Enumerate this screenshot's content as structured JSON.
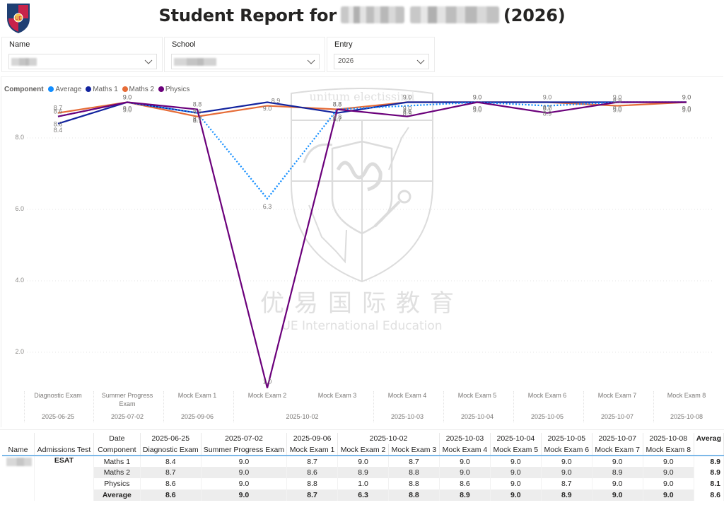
{
  "header": {
    "title_prefix": "Student Report for",
    "student_name_redacted": true,
    "title_suffix": "(2026)",
    "logo": "crest-logo-icon"
  },
  "slicers": [
    {
      "label": "Name",
      "value": "",
      "redacted": true
    },
    {
      "label": "School",
      "value": "",
      "redacted": true
    },
    {
      "label": "Entry",
      "value": "2026",
      "redacted": false
    }
  ],
  "legend": {
    "title": "Component",
    "items": [
      {
        "label": "Average",
        "color": "#118DFF"
      },
      {
        "label": "Maths 1",
        "color": "#12239E"
      },
      {
        "label": "Maths 2",
        "color": "#E66C37"
      },
      {
        "label": "Physics",
        "color": "#6B007B"
      }
    ]
  },
  "watermark": {
    "cn": "优易国际教育",
    "en": "UE International Education",
    "motto": "unitum electissimi"
  },
  "chart_data": {
    "type": "line",
    "title": "",
    "xlabel": "",
    "ylabel": "",
    "ylim": [
      1.0,
      9.0
    ],
    "y_ticks": [
      "2.0",
      "4.0",
      "6.0",
      "8.0"
    ],
    "grid": true,
    "legend_position": "top-left",
    "categories": [
      "Diagnostic Exam",
      "Summer Progress Exam",
      "Mock Exam 1",
      "Mock Exam 2",
      "Mock Exam 3",
      "Mock Exam 4",
      "Mock Exam 5",
      "Mock Exam 6",
      "Mock Exam 7",
      "Mock Exam 8"
    ],
    "category_dates": [
      "2025-06-25",
      "2025-07-02",
      "2025-09-06",
      "2025-10-02",
      "2025-10-02",
      "2025-10-03",
      "2025-10-04",
      "2025-10-05",
      "2025-10-07",
      "2025-10-08"
    ],
    "date_groups": [
      {
        "date": "2025-06-25",
        "span": 1
      },
      {
        "date": "2025-07-02",
        "span": 1
      },
      {
        "date": "2025-09-06",
        "span": 1
      },
      {
        "date": "2025-10-02",
        "span": 2
      },
      {
        "date": "2025-10-03",
        "span": 1
      },
      {
        "date": "2025-10-04",
        "span": 1
      },
      {
        "date": "2025-10-05",
        "span": 1
      },
      {
        "date": "2025-10-07",
        "span": 1
      },
      {
        "date": "2025-10-08",
        "span": 1
      }
    ],
    "series": [
      {
        "name": "Average",
        "color": "#118DFF",
        "style": "dotted",
        "values": [
          8.6,
          9.0,
          8.7,
          6.3,
          8.8,
          8.9,
          9.0,
          8.9,
          9.0,
          9.0
        ]
      },
      {
        "name": "Maths 1",
        "color": "#12239E",
        "style": "solid",
        "values": [
          8.4,
          9.0,
          8.7,
          9.0,
          8.7,
          9.0,
          9.0,
          9.0,
          9.0,
          9.0
        ]
      },
      {
        "name": "Maths 2",
        "color": "#E66C37",
        "style": "solid",
        "values": [
          8.7,
          9.0,
          8.6,
          8.9,
          8.8,
          9.0,
          9.0,
          9.0,
          8.9,
          9.0
        ]
      },
      {
        "name": "Physics",
        "color": "#6B007B",
        "style": "solid",
        "values": [
          8.6,
          9.0,
          8.8,
          1.0,
          8.8,
          8.6,
          9.0,
          8.7,
          9.0,
          9.0
        ]
      }
    ]
  },
  "table": {
    "headers": {
      "name": "Name",
      "admissions_test": "Admissions Test",
      "date": "Date",
      "component": "Component",
      "average": "Averag"
    },
    "columns": [
      {
        "date": "2025-06-25",
        "exam": "Diagnostic Exam"
      },
      {
        "date": "2025-07-02",
        "exam": "Summer Progress Exam"
      },
      {
        "date": "2025-09-06",
        "exam": "Mock Exam 1"
      },
      {
        "date": "2025-10-02",
        "exam": "Mock Exam 2"
      },
      {
        "date": "",
        "exam": "Mock Exam 3"
      },
      {
        "date": "2025-10-03",
        "exam": "Mock Exam 4"
      },
      {
        "date": "2025-10-04",
        "exam": "Mock Exam 5"
      },
      {
        "date": "2025-10-05",
        "exam": "Mock Exam 6"
      },
      {
        "date": "2025-10-07",
        "exam": "Mock Exam 7"
      },
      {
        "date": "2025-10-08",
        "exam": "Mock Exam 8"
      }
    ],
    "name_redacted": true,
    "admissions_test": "ESAT",
    "rows": [
      {
        "component": "Maths 1",
        "values": [
          "8.4",
          "9.0",
          "8.7",
          "9.0",
          "8.7",
          "9.0",
          "9.0",
          "9.0",
          "9.0",
          "9.0"
        ],
        "average": "8.9"
      },
      {
        "component": "Maths 2",
        "values": [
          "8.7",
          "9.0",
          "8.6",
          "8.9",
          "8.8",
          "9.0",
          "9.0",
          "9.0",
          "8.9",
          "9.0"
        ],
        "average": "8.9"
      },
      {
        "component": "Physics",
        "values": [
          "8.6",
          "9.0",
          "8.8",
          "1.0",
          "8.8",
          "8.6",
          "9.0",
          "8.7",
          "9.0",
          "9.0"
        ],
        "average": "8.1"
      },
      {
        "component": "Average",
        "values": [
          "8.6",
          "9.0",
          "8.7",
          "6.3",
          "8.8",
          "8.9",
          "9.0",
          "8.9",
          "9.0",
          "9.0"
        ],
        "average": "8.6"
      }
    ]
  }
}
